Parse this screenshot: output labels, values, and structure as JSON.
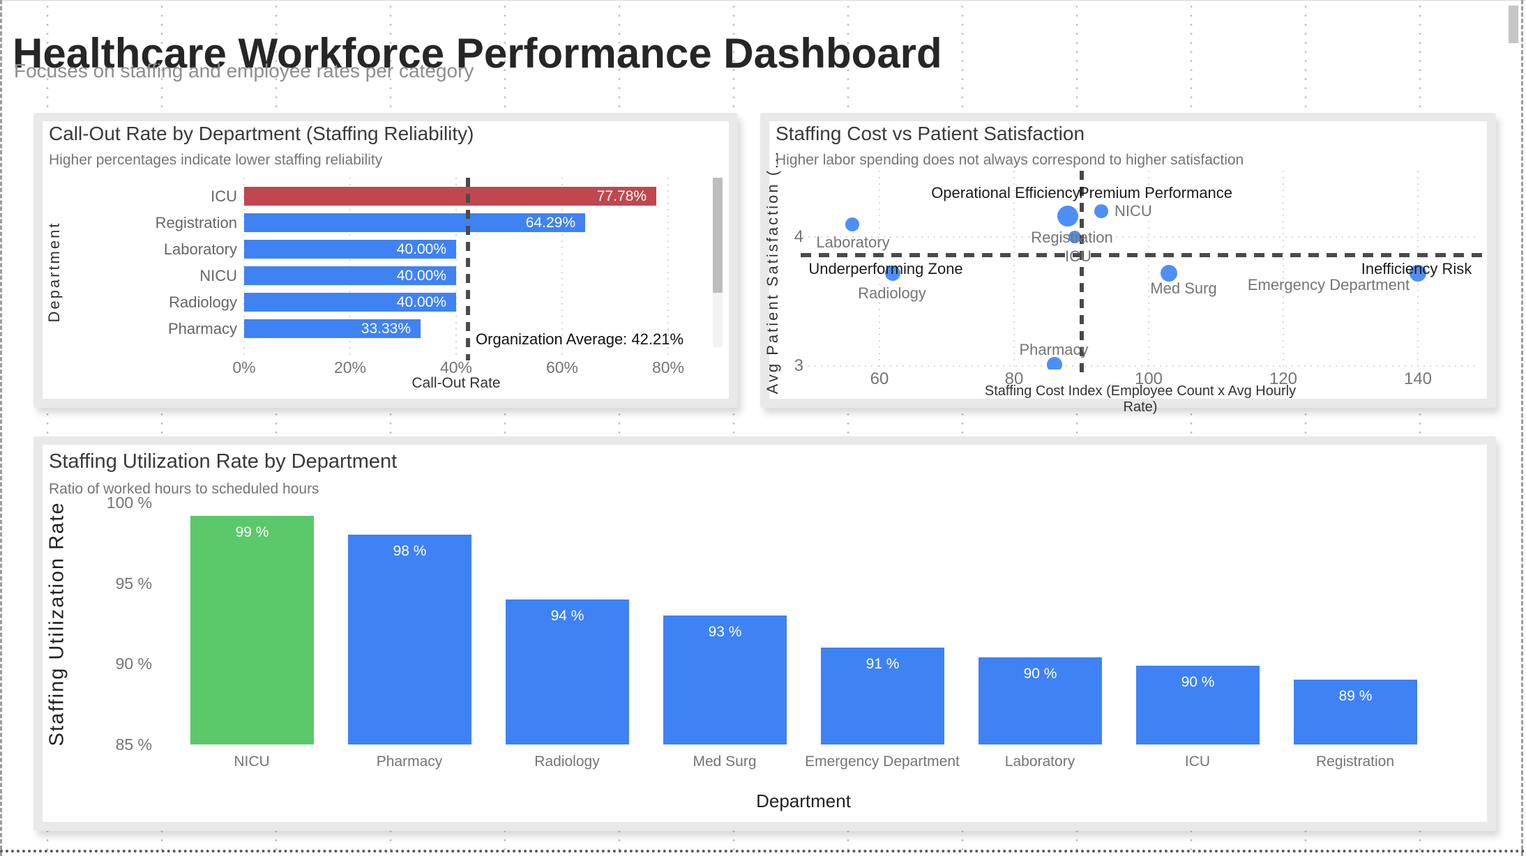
{
  "page": {
    "title": "Healthcare Workforce Performance Dashboard",
    "subtitle": "Focuses on staffing and employee rates per category"
  },
  "colors": {
    "bar_blue": "#3f82f4",
    "bar_red": "#c0474f",
    "bar_green": "#5bc86a",
    "point_blue": "#4d8ff7",
    "ref_line": "#4a4a4a",
    "grid": "#d9d9d9",
    "text_gray": "#757575",
    "text_dark": "#333333"
  },
  "chart_data": [
    {
      "id": "callout",
      "type": "bar",
      "orientation": "horizontal",
      "title": "Call-Out Rate by Department (Staffing Reliability)",
      "subtitle": "Higher percentages indicate lower staffing reliability",
      "xlabel": "Call-Out Rate",
      "ylabel": "Department",
      "xlim": [
        0,
        88
      ],
      "grid": true,
      "categories": [
        "ICU",
        "Registration",
        "Laboratory",
        "NICU",
        "Radiology",
        "Pharmacy"
      ],
      "values": [
        77.78,
        64.29,
        40,
        40,
        40,
        33.33
      ],
      "value_labels": [
        "77.78%",
        "64.29%",
        "40.00%",
        "40.00%",
        "40.00%",
        "33.33%"
      ],
      "bar_colors": [
        "bar_red",
        "bar_blue",
        "bar_blue",
        "bar_blue",
        "bar_blue",
        "bar_blue"
      ],
      "x_ticks": [
        {
          "v": 0,
          "label": "0%"
        },
        {
          "v": 20,
          "label": "20%"
        },
        {
          "v": 40,
          "label": "40%"
        },
        {
          "v": 60,
          "label": "60%"
        },
        {
          "v": 80,
          "label": "80%"
        }
      ],
      "reference_line": {
        "value": 42.21,
        "label": "Organization Average: 42.21%"
      }
    },
    {
      "id": "scatter",
      "type": "scatter",
      "title": "Staffing Cost vs Patient Satisfaction",
      "subtitle": "Higher labor spending does not always correspond to higher satisfaction",
      "xlabel": "Staffing Cost Index (Employee Count x Avg Hourly Rate)",
      "ylabel": "Avg Patient Satisfaction (...",
      "xlim": [
        48,
        150
      ],
      "ylim": [
        2.99,
        4.51
      ],
      "grid": true,
      "x_ticks": [
        {
          "v": 60,
          "label": "60"
        },
        {
          "v": 80,
          "label": "80"
        },
        {
          "v": 100,
          "label": "100"
        },
        {
          "v": 120,
          "label": "120"
        },
        {
          "v": 140,
          "label": "140"
        }
      ],
      "y_ticks": [
        {
          "v": 4,
          "label": "4"
        },
        {
          "v": 3,
          "label": "3"
        }
      ],
      "reference_lines": {
        "x_value": 90,
        "y_value": 3.86
      },
      "quadrant_labels": [
        "Operational Efficiency",
        "Premium Performance",
        "Underperforming Zone",
        "Inefficiency Risk"
      ],
      "points": [
        {
          "label": "Laboratory",
          "x": 56,
          "y": 4.1,
          "r": 10
        },
        {
          "label": "Radiology",
          "x": 62,
          "y": 3.72,
          "r": 11
        },
        {
          "label": "Pharmacy",
          "x": 86,
          "y": 3.01,
          "r": 11
        },
        {
          "label": "Registration",
          "x": 88,
          "y": 4.16,
          "r": 15
        },
        {
          "label": "ICU",
          "x": 89,
          "y": 4.0,
          "r": 9
        },
        {
          "label": "NICU",
          "x": 93,
          "y": 4.2,
          "r": 10
        },
        {
          "label": "Med Surg",
          "x": 103,
          "y": 3.72,
          "r": 12
        },
        {
          "label": "Emergency Department",
          "x": 140,
          "y": 3.72,
          "r": 12
        }
      ]
    },
    {
      "id": "utilization",
      "type": "bar",
      "orientation": "vertical",
      "title": "Staffing Utilization Rate by Department",
      "subtitle": "Ratio of worked hours to scheduled hours",
      "xlabel": "Department",
      "ylabel": "Staffing Utilization Rate",
      "ylim": [
        85,
        100
      ],
      "grid": false,
      "categories": [
        "NICU",
        "Pharmacy",
        "Radiology",
        "Med Surg",
        "Emergency Department",
        "Laboratory",
        "ICU",
        "Registration"
      ],
      "values": [
        99.2,
        98,
        94,
        93,
        91,
        90.4,
        89.9,
        89
      ],
      "value_labels": [
        "99 %",
        "98 %",
        "94 %",
        "93 %",
        "91 %",
        "90 %",
        "90 %",
        "89 %"
      ],
      "bar_colors": [
        "bar_green",
        "bar_blue",
        "bar_blue",
        "bar_blue",
        "bar_blue",
        "bar_blue",
        "bar_blue",
        "bar_blue"
      ],
      "y_ticks": [
        {
          "v": 100,
          "label": "100 %"
        },
        {
          "v": 95,
          "label": "95 %"
        },
        {
          "v": 90,
          "label": "90 %"
        },
        {
          "v": 85,
          "label": "85 %"
        }
      ]
    }
  ]
}
